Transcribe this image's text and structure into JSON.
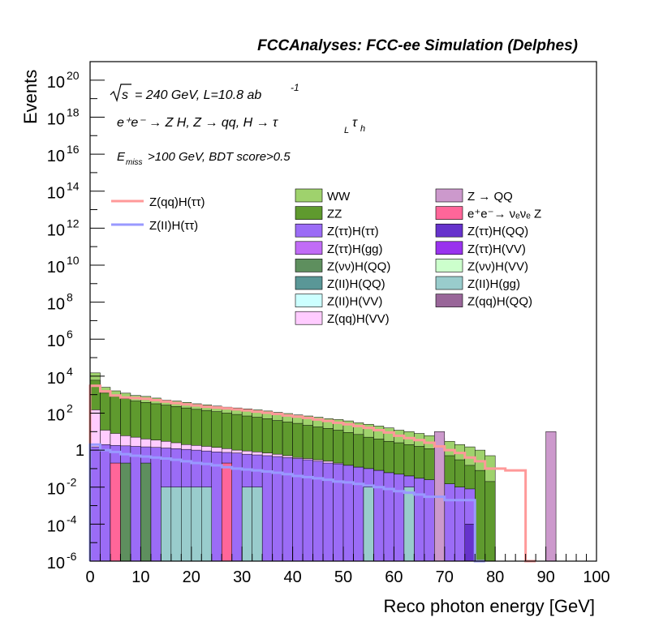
{
  "header": "FCCAnalyses: FCC-ee Simulation (Delphes)",
  "annotations": {
    "sqrt": "s",
    "energy_lumi": "= 240 GeV, L=10.8 ab",
    "lumi_exp": "-1",
    "process": "e⁺e⁻ → Z H, Z → qq, H → τ",
    "process_sub1": "L",
    "process_tau2": "τ",
    "process_sub2": "h",
    "cut_e": "E",
    "cut_sub": "miss",
    "cut_rest": ">100 GeV, BDT score>0.5"
  },
  "colors": {
    "WW": "#9fd26d",
    "ZZ": "#5f9a2e",
    "Z_tautau_H_tautau": "#9b6cf6",
    "Z_tautau_H_gg": "#c16cf6",
    "Z_nunu_H_QQ": "#5e8f5e",
    "Z_ll_H_QQ": "#5a9797",
    "Z_ll_H_VV": "#ccffff",
    "Z_qq_H_VV": "#ffccff",
    "Z_QQ": "#cc99cc",
    "nunuZ": "#ff6699",
    "Z_tautau_H_QQ": "#6633cc",
    "Z_tautau_H_VV": "#9933ee",
    "Z_nunu_H_VV": "#ccffcc",
    "Z_ll_H_gg": "#99cccc",
    "Z_qq_H_QQ": "#996699",
    "sig_qq": "#ff9999",
    "sig_ll": "#9999ff"
  },
  "chart_data": {
    "type": "area",
    "title": "FCCAnalyses: FCC-ee Simulation (Delphes)",
    "xlabel": "Reco photon energy [GeV]",
    "ylabel": "Events",
    "xlim": [
      0,
      100
    ],
    "ylim": [
      1e-06,
      1e+21
    ],
    "yscale": "log",
    "grid": false,
    "x_bin_width": 2,
    "x_ticks": [
      "0",
      "10",
      "20",
      "30",
      "40",
      "50",
      "60",
      "70",
      "80",
      "90",
      "100"
    ],
    "y_ticks": [
      {
        "base": "10",
        "exp": "20"
      },
      {
        "base": "10",
        "exp": "18"
      },
      {
        "base": "10",
        "exp": "16"
      },
      {
        "base": "10",
        "exp": "14"
      },
      {
        "base": "10",
        "exp": "12"
      },
      {
        "base": "10",
        "exp": "10"
      },
      {
        "base": "10",
        "exp": "8"
      },
      {
        "base": "10",
        "exp": "6"
      },
      {
        "base": "10",
        "exp": "4"
      },
      {
        "base": "10",
        "exp": "2"
      },
      {
        "base": "1",
        "exp": ""
      },
      {
        "base": "10",
        "exp": "-2"
      },
      {
        "base": "10",
        "exp": "-4"
      },
      {
        "base": "10",
        "exp": "-6"
      }
    ],
    "stack_totals": {
      "WW_top": [
        15000,
        2500,
        1600,
        1200,
        900,
        800,
        650,
        500,
        450,
        380,
        320,
        280,
        240,
        210,
        190,
        170,
        150,
        130,
        110,
        95,
        80,
        70,
        60,
        50,
        45,
        38,
        30,
        25,
        20,
        16,
        12,
        10,
        8,
        6,
        4.5,
        3,
        2,
        1.5,
        1,
        0.5
      ],
      "ZZ_top": [
        6000,
        1200,
        800,
        600,
        450,
        380,
        320,
        270,
        230,
        190,
        160,
        140,
        120,
        100,
        85,
        70,
        60,
        50,
        40,
        33,
        28,
        22,
        18,
        15,
        12,
        9,
        7,
        5,
        4,
        3,
        2.5,
        2,
        1.6,
        1.2,
        0.8,
        0.5,
        0.3,
        0.15,
        0.08,
        0.02
      ],
      "others_top": [
        150,
        12,
        8,
        6,
        5,
        4,
        3.5,
        3,
        2.5,
        2,
        1.8,
        1.6,
        1.4,
        1.2,
        1,
        0.9,
        0.8,
        0.7,
        0.6,
        0.5,
        0.4,
        0.35,
        0.3,
        0.25,
        0.2,
        0.15,
        0.12,
        0.1,
        0.08,
        0.06,
        0.05,
        0.04,
        0.03,
        0.02,
        0.015,
        0.01,
        0.008,
        0.005
      ],
      "Z_tautau_H_tautau_top": [
        1.5,
        2,
        1.8,
        1.7,
        1.6,
        1.5,
        1.4,
        1.3,
        1.2,
        1.1,
        1,
        0.9,
        0.8,
        0.75,
        0.7,
        0.6,
        0.55,
        0.5,
        0.45,
        0.4,
        0.35,
        0.3,
        0.25,
        0.2,
        0.18,
        0.15,
        0.12,
        0.1,
        0.08,
        0.06,
        0.05,
        0.04,
        0.03,
        0.025,
        0.02,
        0.015,
        0.01,
        0.008
      ]
    },
    "spikes": [
      {
        "name": "Z(II)H(gg)",
        "x": [
          14,
          16,
          18,
          20,
          22,
          30,
          32,
          54,
          62
        ],
        "value": 0.01
      },
      {
        "name": "Z(vv)H(QQ)",
        "x": [
          6,
          10
        ],
        "value": 0.2
      },
      {
        "name": "nunuZ",
        "x": [
          4,
          26
        ],
        "value": 0.2
      },
      {
        "name": "Z → QQ",
        "x": [
          68,
          90
        ],
        "value": 10
      },
      {
        "name": "Z(ττ)H(QQ)",
        "x": [
          74
        ],
        "value": 0.0001
      }
    ],
    "series": [
      {
        "name": "Z(qq)H(ττ)",
        "values": [
          3000,
          1500,
          900,
          700,
          650,
          600,
          500,
          420,
          350,
          300,
          260,
          220,
          200,
          180,
          160,
          140,
          120,
          105,
          90,
          75,
          65,
          55,
          45,
          38,
          30,
          25,
          20,
          16,
          12,
          9,
          6,
          4.5,
          3.5,
          2.5,
          1.6,
          1,
          0.7,
          0.4,
          0.25,
          0.1,
          0.1,
          0.08,
          0.08,
          1e-06
        ]
      },
      {
        "name": "Z(ll)H(ττ)",
        "values": [
          2,
          1,
          0.8,
          0.6,
          0.5,
          0.45,
          0.4,
          0.35,
          0.3,
          0.25,
          0.2,
          0.18,
          0.15,
          0.12,
          0.1,
          0.09,
          0.08,
          0.07,
          0.06,
          0.05,
          0.04,
          0.035,
          0.03,
          0.025,
          0.02,
          0.018,
          0.015,
          0.012,
          0.01,
          0.008,
          0.006,
          0.005,
          0.004,
          0.003,
          0.003,
          0.002,
          0.002,
          0.002,
          1e-06
        ]
      }
    ],
    "legend": {
      "lines": [
        {
          "label": "Z(qq)H(ττ)",
          "color_key": "sig_qq"
        },
        {
          "label": "Z(II)H(ττ)",
          "color_key": "sig_ll"
        }
      ],
      "col1": [
        {
          "label": "WW",
          "color_key": "WW"
        },
        {
          "label": "ZZ",
          "color_key": "ZZ"
        },
        {
          "label": "Z(ττ)H(ττ)",
          "color_key": "Z_tautau_H_tautau"
        },
        {
          "label": "Z(ττ)H(gg)",
          "color_key": "Z_tautau_H_gg"
        },
        {
          "label": "Z(νν)H(QQ)",
          "color_key": "Z_nunu_H_QQ"
        },
        {
          "label": "Z(II)H(QQ)",
          "color_key": "Z_ll_H_QQ"
        },
        {
          "label": "Z(II)H(VV)",
          "color_key": "Z_ll_H_VV"
        },
        {
          "label": "Z(qq)H(VV)",
          "color_key": "Z_qq_H_VV"
        }
      ],
      "col2": [
        {
          "label": "Z → QQ",
          "color_key": "Z_QQ"
        },
        {
          "label": "e⁺e⁻→ νₑνₑ Z",
          "color_key": "nunuZ"
        },
        {
          "label": "Z(ττ)H(QQ)",
          "color_key": "Z_tautau_H_QQ"
        },
        {
          "label": "Z(ττ)H(VV)",
          "color_key": "Z_tautau_H_VV"
        },
        {
          "label": "Z(νν)H(VV)",
          "color_key": "Z_nunu_H_VV"
        },
        {
          "label": "Z(II)H(gg)",
          "color_key": "Z_ll_H_gg"
        },
        {
          "label": "Z(qq)H(QQ)",
          "color_key": "Z_qq_H_QQ"
        }
      ]
    }
  }
}
